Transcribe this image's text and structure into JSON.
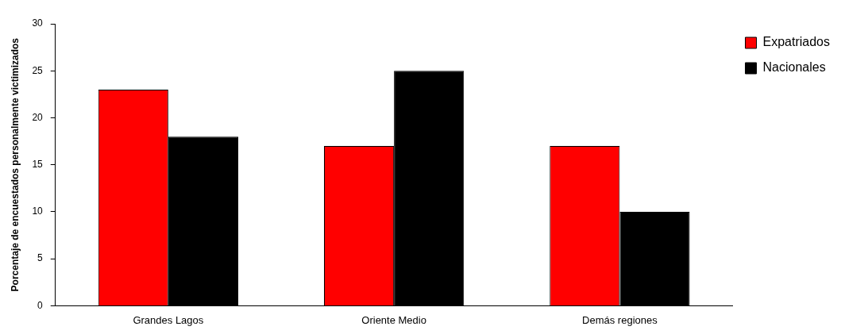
{
  "chart_data": {
    "type": "bar",
    "ylabel": "Porcentaje de encuestados personalmente victimizados",
    "categories": [
      "Grandes Lagos",
      "Oriente Medio",
      "Demás regiones"
    ],
    "series": [
      {
        "name": "Expatriados",
        "color": "#ff0000",
        "values": [
          23,
          17,
          17
        ]
      },
      {
        "name": "Nacionales",
        "color": "#000000",
        "values": [
          18,
          25,
          10
        ]
      }
    ],
    "ylim": [
      0,
      30
    ],
    "yticks": [
      0,
      5,
      10,
      15,
      20,
      25,
      30
    ],
    "legend": "top right"
  }
}
